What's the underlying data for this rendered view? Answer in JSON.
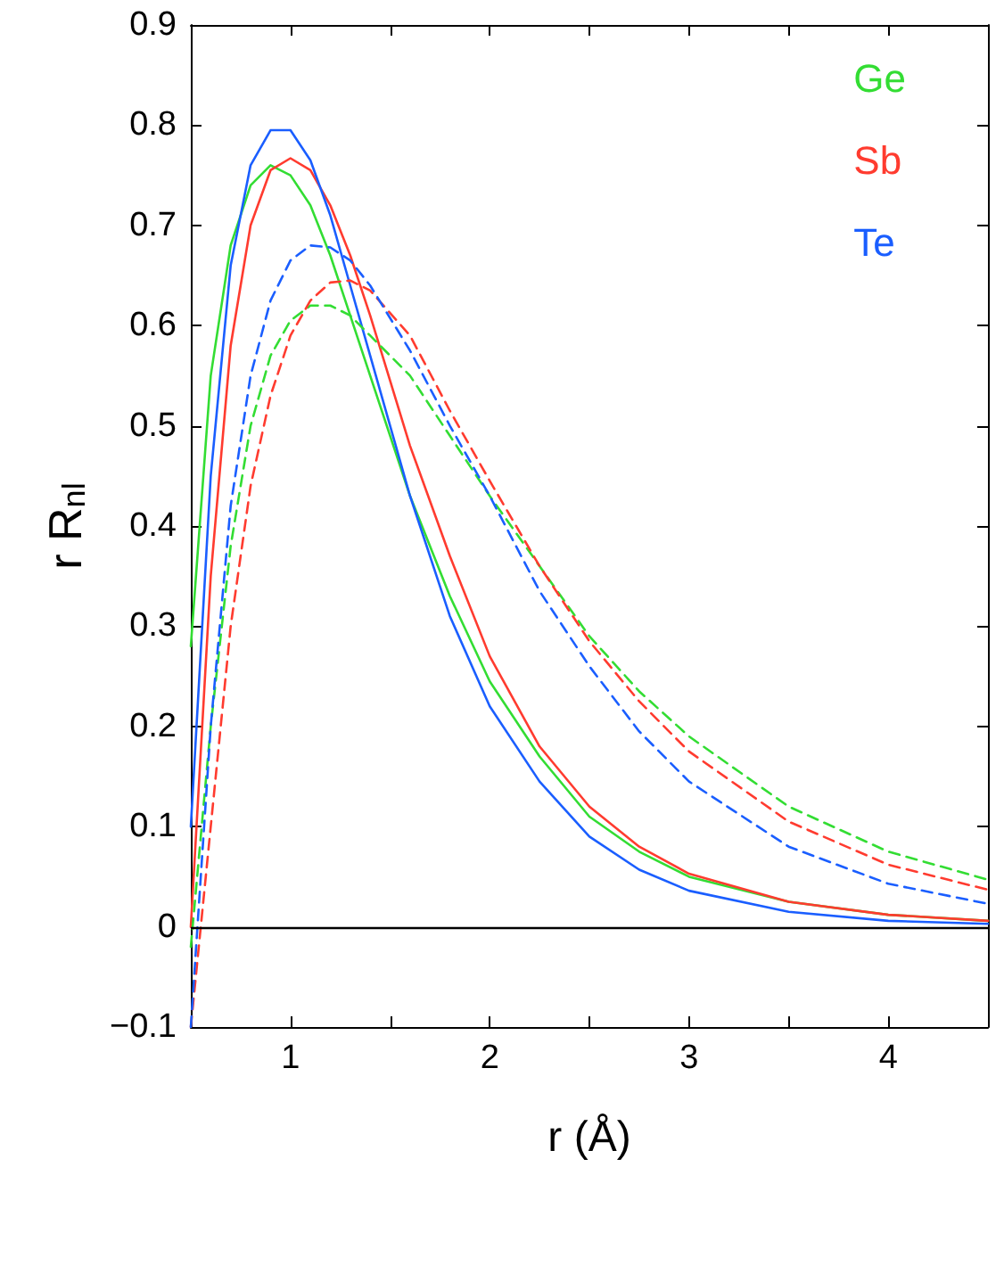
{
  "chart_data": {
    "type": "line",
    "xlabel": "r (Å)",
    "ylabel": "r R$_{nl}$",
    "x": [
      0.5,
      0.6,
      0.7,
      0.8,
      0.9,
      1.0,
      1.1,
      1.2,
      1.3,
      1.4,
      1.6,
      1.8,
      2.0,
      2.25,
      2.5,
      2.75,
      3.0,
      3.5,
      4.0,
      4.5
    ],
    "series": [
      {
        "name": "Ge",
        "color": "#33dd33",
        "line_style": "solid",
        "values": [
          0.28,
          0.55,
          0.68,
          0.74,
          0.76,
          0.75,
          0.72,
          0.67,
          0.61,
          0.55,
          0.43,
          0.33,
          0.245,
          0.17,
          0.11,
          0.075,
          0.05,
          0.025,
          0.012,
          0.006
        ]
      },
      {
        "name": "Sb",
        "color": "#ff3b2f",
        "line_style": "solid",
        "values": [
          0.0,
          0.35,
          0.58,
          0.7,
          0.755,
          0.767,
          0.755,
          0.72,
          0.67,
          0.61,
          0.48,
          0.37,
          0.27,
          0.18,
          0.12,
          0.08,
          0.053,
          0.025,
          0.012,
          0.006
        ]
      },
      {
        "name": "Te",
        "color": "#1a5eff",
        "line_style": "solid",
        "values": [
          0.1,
          0.45,
          0.66,
          0.76,
          0.795,
          0.795,
          0.765,
          0.71,
          0.64,
          0.57,
          0.43,
          0.31,
          0.22,
          0.145,
          0.09,
          0.057,
          0.036,
          0.015,
          0.006,
          0.003
        ]
      },
      {
        "color": "#33dd33",
        "line_style": "dashed",
        "values": [
          -0.02,
          0.2,
          0.38,
          0.5,
          0.57,
          0.605,
          0.62,
          0.62,
          0.61,
          0.59,
          0.55,
          0.49,
          0.43,
          0.36,
          0.29,
          0.235,
          0.19,
          0.12,
          0.075,
          0.047
        ]
      },
      {
        "color": "#ff3b2f",
        "line_style": "dashed",
        "values": [
          -0.1,
          0.1,
          0.3,
          0.44,
          0.53,
          0.59,
          0.625,
          0.643,
          0.645,
          0.635,
          0.59,
          0.515,
          0.445,
          0.36,
          0.285,
          0.225,
          0.175,
          0.105,
          0.062,
          0.037
        ]
      },
      {
        "color": "#1a5eff",
        "line_style": "dashed",
        "values": [
          -0.1,
          0.2,
          0.42,
          0.55,
          0.625,
          0.665,
          0.68,
          0.678,
          0.665,
          0.64,
          0.575,
          0.5,
          0.43,
          0.335,
          0.26,
          0.195,
          0.145,
          0.08,
          0.043,
          0.023
        ]
      }
    ],
    "xlim": [
      0.5,
      4.5
    ],
    "xticks": [
      1,
      {
        "value": 1.5,
        "label": null
      },
      2,
      {
        "value": 2.5,
        "label": null
      },
      3,
      {
        "value": 3.5,
        "label": null
      },
      4
    ],
    "ylim": [
      -0.1,
      0.9
    ],
    "yticks": [
      -0.1,
      0,
      0.1,
      0.2,
      0.3,
      0.4,
      0.5,
      0.6,
      0.7,
      0.8,
      0.9
    ],
    "ref_lines": [
      {
        "axis": "y",
        "value": 0,
        "color": "#000000"
      }
    ],
    "grid": false,
    "legend": "top right",
    "marker": "none"
  }
}
